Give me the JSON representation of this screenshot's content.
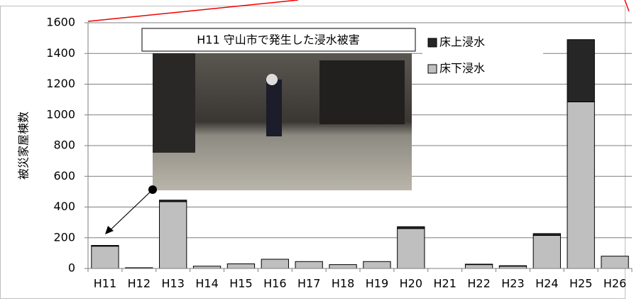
{
  "chart_data": {
    "type": "stacked_bar",
    "annotation": "H11 守山市で発生した浸水被害",
    "y_label": "被災家屋棟数",
    "categories": [
      "H11",
      "H12",
      "H13",
      "H14",
      "H15",
      "H16",
      "H17",
      "H18",
      "H19",
      "H20",
      "H21",
      "H22",
      "H23",
      "H24",
      "H25",
      "H26"
    ],
    "series": [
      {
        "name": "床下浸水",
        "color": "#bfbfbf",
        "values": [
          145,
          5,
          435,
          15,
          30,
          60,
          45,
          25,
          45,
          260,
          0,
          25,
          15,
          215,
          1085,
          80
        ]
      },
      {
        "name": "床上浸水",
        "color": "#262626",
        "values": [
          5,
          0,
          10,
          0,
          0,
          0,
          0,
          0,
          0,
          12,
          0,
          3,
          3,
          12,
          405,
          0
        ]
      }
    ],
    "ylim": [
      0,
      1600
    ],
    "yticks": [
      0,
      200,
      400,
      600,
      800,
      1000,
      1200,
      1400,
      1600
    ],
    "grid": true
  }
}
